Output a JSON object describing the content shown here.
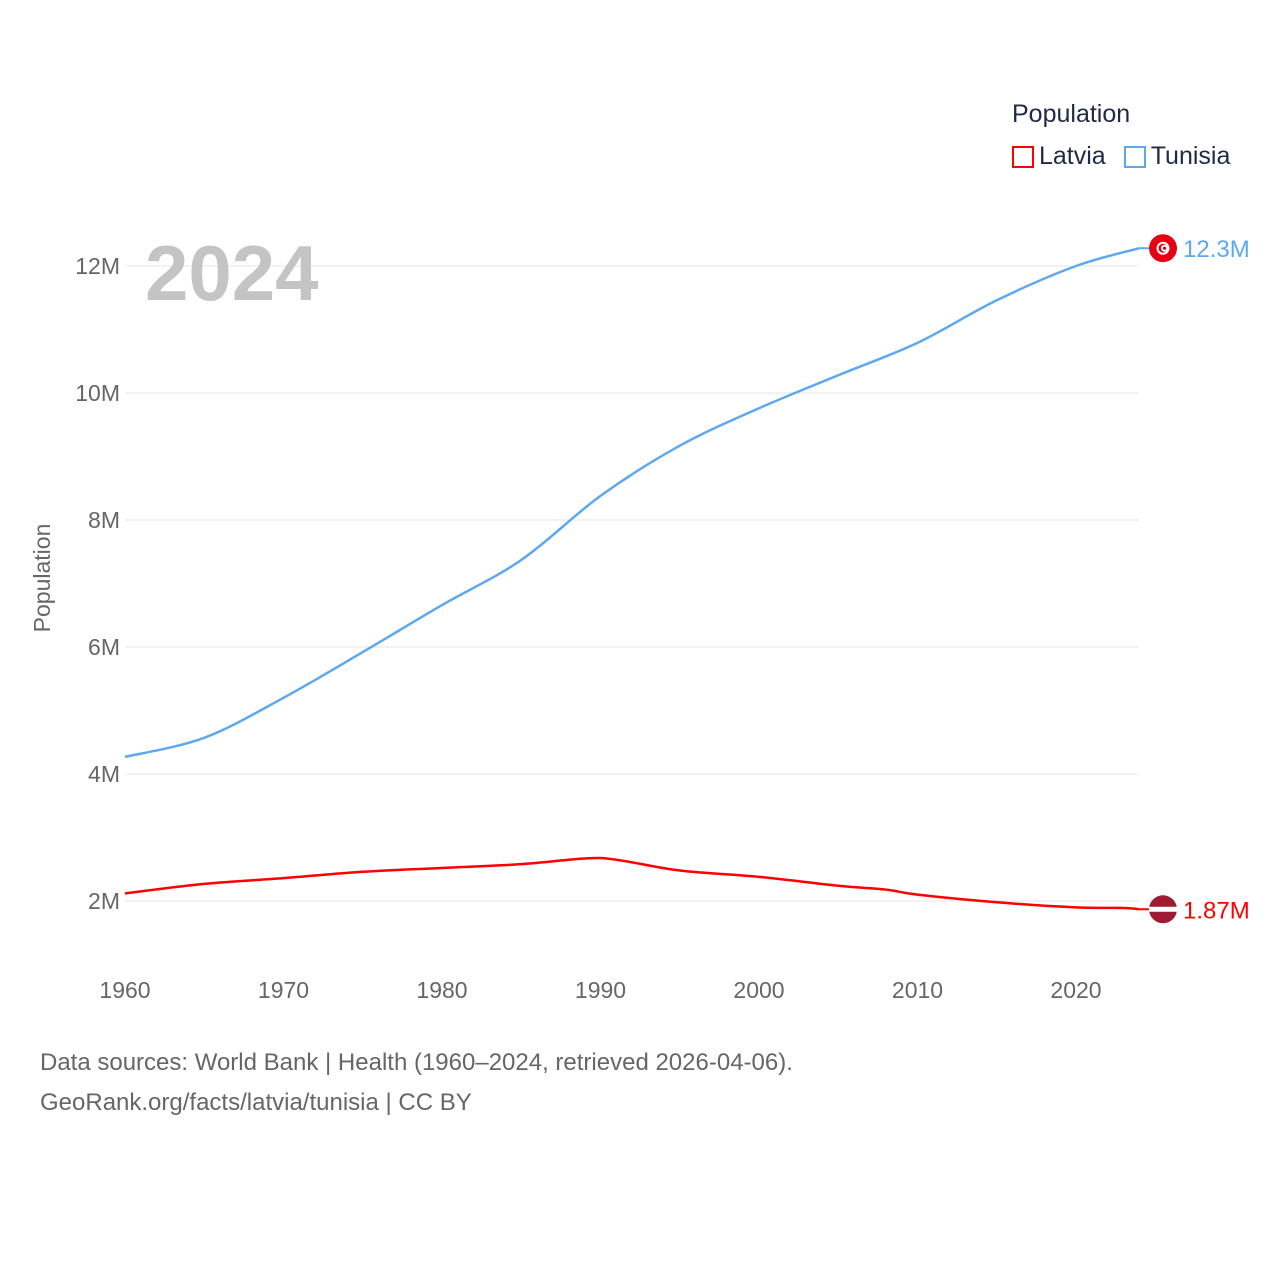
{
  "chart_data": {
    "type": "line",
    "title": "",
    "year_label": "2024",
    "xlabel": "",
    "ylabel": "Population",
    "xlim": [
      1960,
      2024
    ],
    "ylim": [
      1000000,
      13000000
    ],
    "x_ticks": [
      1960,
      1970,
      1980,
      1990,
      2000,
      2010,
      2020
    ],
    "x_tick_labels": [
      "1960",
      "1970",
      "1980",
      "1990",
      "2000",
      "2010",
      "2020"
    ],
    "y_ticks": [
      2000000,
      4000000,
      6000000,
      8000000,
      10000000,
      12000000
    ],
    "y_tick_labels": [
      "2M",
      "4M",
      "6M",
      "8M",
      "10M",
      "12M"
    ],
    "grid": true,
    "legend": {
      "title": "Population",
      "placement": "top-right"
    },
    "series": [
      {
        "name": "Latvia",
        "color": "#ff0000",
        "end_label": "1.87M",
        "flag": "latvia-flag",
        "x": [
          1960,
          1965,
          1970,
          1975,
          1980,
          1985,
          1989,
          1991,
          1995,
          2000,
          2005,
          2008,
          2010,
          2015,
          2020,
          2023,
          2024
        ],
        "values": [
          2120000,
          2270000,
          2360000,
          2460000,
          2520000,
          2580000,
          2670000,
          2650000,
          2480000,
          2380000,
          2240000,
          2180000,
          2100000,
          1980000,
          1900000,
          1890000,
          1870000
        ]
      },
      {
        "name": "Tunisia",
        "color": "#5ea8ee",
        "end_label": "12.3M",
        "flag": "tunisia-flag",
        "x": [
          1960,
          1965,
          1970,
          1975,
          1980,
          1985,
          1990,
          1995,
          2000,
          2005,
          2010,
          2015,
          2020,
          2024
        ],
        "values": [
          4270000,
          4570000,
          5200000,
          5920000,
          6660000,
          7370000,
          8380000,
          9170000,
          9760000,
          10280000,
          10790000,
          11460000,
          12000000,
          12280000
        ]
      }
    ]
  },
  "footer": {
    "line1": "Data sources: World Bank | Health (1960–2024, retrieved 2026-04-06).",
    "line2": "GeoRank.org/facts/latvia/tunisia | CC BY"
  }
}
